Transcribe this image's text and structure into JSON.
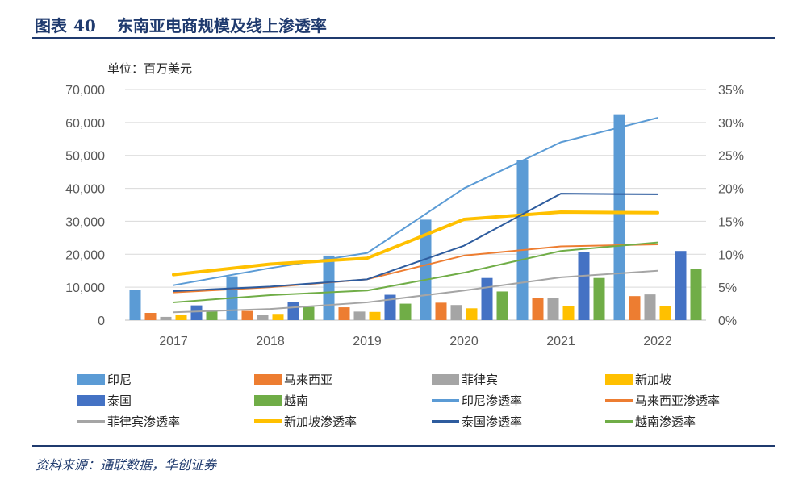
{
  "figure": {
    "title_prefix": "图表",
    "number": "40",
    "title": "东南亚电商规模及线上渗透率",
    "unit_label": "单位：百万美元",
    "source": "资料来源：通联数据，华创证券"
  },
  "chart_data": {
    "type": "bar+line",
    "categories": [
      "2017",
      "2018",
      "2019",
      "2020",
      "2021",
      "2022"
    ],
    "left_axis": {
      "min": 0,
      "max": 70000,
      "step": 10000,
      "ticks": [
        "0",
        "10,000",
        "20,000",
        "30,000",
        "40,000",
        "50,000",
        "60,000",
        "70,000"
      ]
    },
    "right_axis": {
      "min": 0,
      "max": 35,
      "step": 5,
      "ticks": [
        "0%",
        "5%",
        "10%",
        "15%",
        "20%",
        "25%",
        "30%",
        "35%"
      ]
    },
    "bar_series": [
      {
        "name": "印尼",
        "color": "#5b9bd5",
        "values": [
          9100,
          13300,
          19600,
          30500,
          48500,
          62500
        ]
      },
      {
        "name": "马来西亚",
        "color": "#ed7d31",
        "values": [
          2200,
          2800,
          3900,
          5300,
          6700,
          7300
        ]
      },
      {
        "name": "菲律宾",
        "color": "#a5a5a5",
        "values": [
          1000,
          1700,
          2600,
          4600,
          6800,
          7800
        ]
      },
      {
        "name": "新加坡",
        "color": "#ffc000",
        "values": [
          1600,
          1900,
          2500,
          3600,
          4300,
          4300
        ]
      },
      {
        "name": "泰国",
        "color": "#4472c4",
        "values": [
          4500,
          5500,
          7700,
          12800,
          20700,
          21000
        ]
      },
      {
        "name": "越南",
        "color": "#70ad47",
        "values": [
          2800,
          4000,
          5000,
          8700,
          12800,
          15600
        ]
      }
    ],
    "line_series": [
      {
        "name": "印尼渗透率",
        "color": "#5b9bd5",
        "width": 2,
        "values": [
          5.3,
          7.9,
          10.2,
          20.0,
          27.0,
          30.7
        ]
      },
      {
        "name": "马来西亚渗透率",
        "color": "#ed7d31",
        "width": 2,
        "values": [
          4.2,
          5.0,
          6.2,
          9.8,
          11.2,
          11.5
        ]
      },
      {
        "name": "菲律宾渗透率",
        "color": "#a5a5a5",
        "width": 2,
        "values": [
          1.2,
          1.7,
          2.7,
          4.5,
          6.5,
          7.5
        ]
      },
      {
        "name": "新加坡渗透率",
        "color": "#ffc000",
        "width": 4,
        "values": [
          6.9,
          8.5,
          9.4,
          15.3,
          16.4,
          16.3
        ]
      },
      {
        "name": "泰国渗透率",
        "color": "#2e5c9e",
        "width": 2,
        "values": [
          4.4,
          5.1,
          6.2,
          11.3,
          19.2,
          19.1
        ]
      },
      {
        "name": "越南渗透率",
        "color": "#70ad47",
        "width": 2,
        "values": [
          2.7,
          3.8,
          4.5,
          7.2,
          10.5,
          11.8
        ]
      }
    ]
  }
}
